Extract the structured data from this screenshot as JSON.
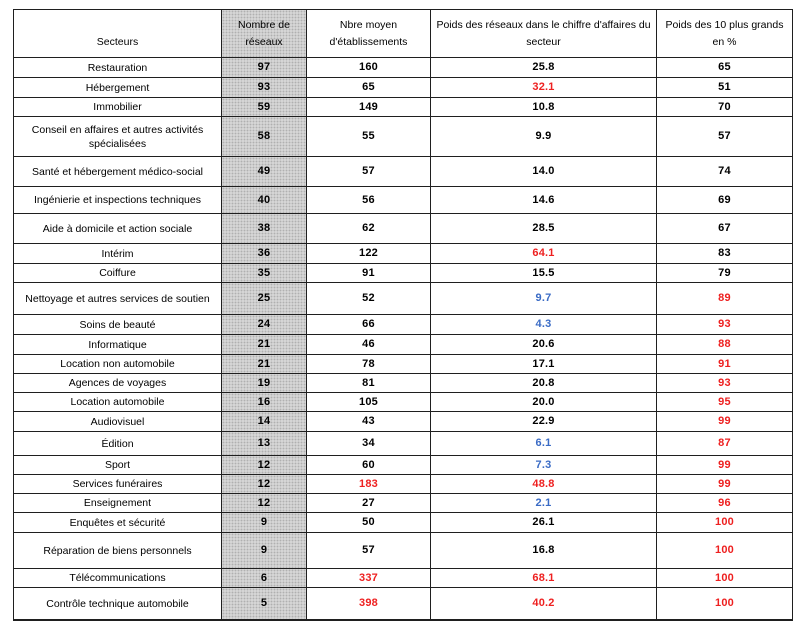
{
  "colors": {
    "highlight_red": "#ee2020",
    "highlight_blue": "#3a6bc5",
    "networks_column_fill": "#d6d6d6",
    "grid_line": "#1f1f1f"
  },
  "header": {
    "col_sectors": "Secteurs",
    "col_networks": "Nombre de\nréseaux",
    "col_avg": "Nbre moyen\nd'établissements",
    "col_weight": "Poids des réseaux dans le chiffre d'affaires du\nsecteur",
    "col_top10": "Poids des 10 plus grands\nen %"
  },
  "rows": [
    {
      "sector": "Restauration",
      "networks": "97",
      "avg": "160",
      "avg_color": "black",
      "weight": "25.8",
      "weight_color": "black",
      "top10": "65",
      "top10_color": "black"
    },
    {
      "sector": "Hébergement",
      "networks": "93",
      "avg": "65",
      "avg_color": "black",
      "weight": "32.1",
      "weight_color": "red",
      "top10": "51",
      "top10_color": "black"
    },
    {
      "sector": "Immobilier",
      "networks": "59",
      "avg": "149",
      "avg_color": "black",
      "weight": "10.8",
      "weight_color": "black",
      "top10": "70",
      "top10_color": "black"
    },
    {
      "sector": "Conseil en affaires et autres activités spécialisées",
      "networks": "58",
      "avg": "55",
      "avg_color": "black",
      "weight": "9.9",
      "weight_color": "black",
      "top10": "57",
      "top10_color": "black"
    },
    {
      "sector": "Santé et hébergement médico-social",
      "networks": "49",
      "avg": "57",
      "avg_color": "black",
      "weight": "14.0",
      "weight_color": "black",
      "top10": "74",
      "top10_color": "black"
    },
    {
      "sector": "Ingénierie et inspections techniques",
      "networks": "40",
      "avg": "56",
      "avg_color": "black",
      "weight": "14.6",
      "weight_color": "black",
      "top10": "69",
      "top10_color": "black"
    },
    {
      "sector": "Aide à domicile et action sociale",
      "networks": "38",
      "avg": "62",
      "avg_color": "black",
      "weight": "28.5",
      "weight_color": "black",
      "top10": "67",
      "top10_color": "black"
    },
    {
      "sector": "Intérim",
      "networks": "36",
      "avg": "122",
      "avg_color": "black",
      "weight": "64.1",
      "weight_color": "red",
      "top10": "83",
      "top10_color": "black"
    },
    {
      "sector": "Coiffure",
      "networks": "35",
      "avg": "91",
      "avg_color": "black",
      "weight": "15.5",
      "weight_color": "black",
      "top10": "79",
      "top10_color": "black"
    },
    {
      "sector": "Nettoyage et autres services de soutien",
      "networks": "25",
      "avg": "52",
      "avg_color": "black",
      "weight": "9.7",
      "weight_color": "blue",
      "top10": "89",
      "top10_color": "red"
    },
    {
      "sector": "Soins de beauté",
      "networks": "24",
      "avg": "66",
      "avg_color": "black",
      "weight": "4.3",
      "weight_color": "blue",
      "top10": "93",
      "top10_color": "red"
    },
    {
      "sector": "Informatique",
      "networks": "21",
      "avg": "46",
      "avg_color": "black",
      "weight": "20.6",
      "weight_color": "black",
      "top10": "88",
      "top10_color": "red"
    },
    {
      "sector": "Location non automobile",
      "networks": "21",
      "avg": "78",
      "avg_color": "black",
      "weight": "17.1",
      "weight_color": "black",
      "top10": "91",
      "top10_color": "red"
    },
    {
      "sector": "Agences de voyages",
      "networks": "19",
      "avg": "81",
      "avg_color": "black",
      "weight": "20.8",
      "weight_color": "black",
      "top10": "93",
      "top10_color": "red"
    },
    {
      "sector": "Location automobile",
      "networks": "16",
      "avg": "105",
      "avg_color": "black",
      "weight": "20.0",
      "weight_color": "black",
      "top10": "95",
      "top10_color": "red"
    },
    {
      "sector": "Audiovisuel",
      "networks": "14",
      "avg": "43",
      "avg_color": "black",
      "weight": "22.9",
      "weight_color": "black",
      "top10": "99",
      "top10_color": "red"
    },
    {
      "sector": "Édition",
      "networks": "13",
      "avg": "34",
      "avg_color": "black",
      "weight": "6.1",
      "weight_color": "blue",
      "top10": "87",
      "top10_color": "red"
    },
    {
      "sector": "Sport",
      "networks": "12",
      "avg": "60",
      "avg_color": "black",
      "weight": "7.3",
      "weight_color": "blue",
      "top10": "99",
      "top10_color": "red"
    },
    {
      "sector": "Services funéraires",
      "networks": "12",
      "avg": "183",
      "avg_color": "red",
      "weight": "48.8",
      "weight_color": "red",
      "top10": "99",
      "top10_color": "red"
    },
    {
      "sector": "Enseignement",
      "networks": "12",
      "avg": "27",
      "avg_color": "black",
      "weight": "2.1",
      "weight_color": "blue",
      "top10": "96",
      "top10_color": "red"
    },
    {
      "sector": "Enquêtes et sécurité",
      "networks": "9",
      "avg": "50",
      "avg_color": "black",
      "weight": "26.1",
      "weight_color": "black",
      "top10": "100",
      "top10_color": "red"
    },
    {
      "sector": "Réparation de biens personnels",
      "networks": "9",
      "avg": "57",
      "avg_color": "black",
      "weight": "16.8",
      "weight_color": "black",
      "top10": "100",
      "top10_color": "red"
    },
    {
      "sector": "Télécommunications",
      "networks": "6",
      "avg": "337",
      "avg_color": "red",
      "weight": "68.1",
      "weight_color": "red",
      "top10": "100",
      "top10_color": "red"
    },
    {
      "sector": "Contrôle technique automobile",
      "networks": "5",
      "avg": "398",
      "avg_color": "red",
      "weight": "40.2",
      "weight_color": "red",
      "top10": "100",
      "top10_color": "red"
    }
  ]
}
